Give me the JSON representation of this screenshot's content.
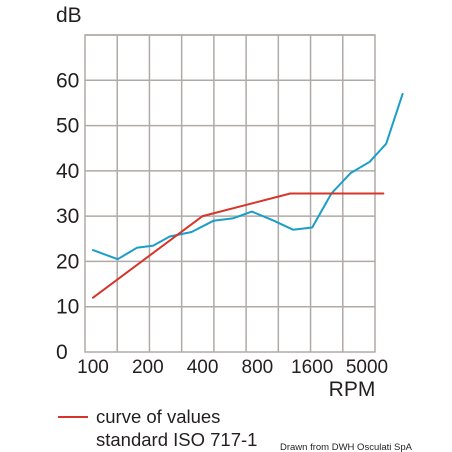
{
  "chart_data": {
    "type": "line",
    "ylabel": "dB",
    "xlabel": "RPM",
    "y_ticks": [
      "0",
      "10",
      "20",
      "30",
      "40",
      "50",
      "60"
    ],
    "x_ticks": [
      "100",
      "200",
      "400",
      "800",
      "1600",
      "5000"
    ],
    "ylim": [
      0,
      70
    ],
    "grid": true,
    "series": [
      {
        "name": "",
        "color": "#1a9ec9",
        "points": [
          {
            "rpm_index": 0.0,
            "db": 22.5
          },
          {
            "rpm_index": 0.45,
            "db": 20.5
          },
          {
            "rpm_index": 0.8,
            "db": 23.0
          },
          {
            "rpm_index": 1.1,
            "db": 23.5
          },
          {
            "rpm_index": 1.4,
            "db": 25.5
          },
          {
            "rpm_index": 1.8,
            "db": 26.5
          },
          {
            "rpm_index": 2.2,
            "db": 29.0
          },
          {
            "rpm_index": 2.55,
            "db": 29.5
          },
          {
            "rpm_index": 2.9,
            "db": 31.0
          },
          {
            "rpm_index": 3.3,
            "db": 29.0
          },
          {
            "rpm_index": 3.65,
            "db": 27.0
          },
          {
            "rpm_index": 4.0,
            "db": 27.5
          },
          {
            "rpm_index": 4.35,
            "db": 35.0
          },
          {
            "rpm_index": 4.7,
            "db": 39.5
          },
          {
            "rpm_index": 5.05,
            "db": 42.0
          },
          {
            "rpm_index": 5.35,
            "db": 46.0
          },
          {
            "rpm_index": 5.65,
            "db": 57.0
          }
        ]
      },
      {
        "name": "curve of values standard ISO 717-1",
        "color": "#d7342a",
        "points": [
          {
            "rpm_index": 0.0,
            "db": 12.0
          },
          {
            "rpm_index": 2.0,
            "db": 30.0
          },
          {
            "rpm_index": 3.6,
            "db": 35.0
          },
          {
            "rpm_index": 4.0,
            "db": 35.0
          },
          {
            "rpm_index": 5.3,
            "db": 35.0
          }
        ]
      }
    ]
  },
  "legend": {
    "line1": "curve of values",
    "line2": "standard ISO 717-1",
    "color": "#d7342a"
  },
  "credit": "Drawn from DWH Osculati SpA"
}
